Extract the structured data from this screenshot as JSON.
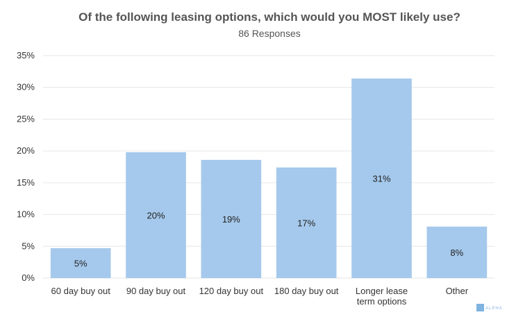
{
  "chart_data": {
    "type": "bar",
    "title": "Of the following leasing options, which would you MOST likely use?",
    "subtitle": "86 Responses",
    "categories": [
      "60 day buy out",
      "90 day buy out",
      "120 day buy out",
      "180 day buy out",
      "Longer lease term options",
      "Other"
    ],
    "category_lines": [
      [
        "60 day buy out"
      ],
      [
        "90 day buy out"
      ],
      [
        "120 day buy out"
      ],
      [
        "180 day buy out"
      ],
      [
        "Longer lease",
        "term options"
      ],
      [
        "Other"
      ]
    ],
    "values": [
      4.7,
      19.8,
      18.6,
      17.4,
      31.4,
      8.1
    ],
    "data_labels": [
      "5%",
      "20%",
      "19%",
      "17%",
      "31%",
      "8%"
    ],
    "yticks": [
      "0%",
      "5%",
      "10%",
      "15%",
      "20%",
      "25%",
      "30%",
      "35%"
    ],
    "ylim": [
      0,
      35
    ],
    "grid": true,
    "bar_color": "#a5c9ec"
  },
  "logo": {
    "text": "ALPHA",
    "color": "#7fb3e0"
  }
}
